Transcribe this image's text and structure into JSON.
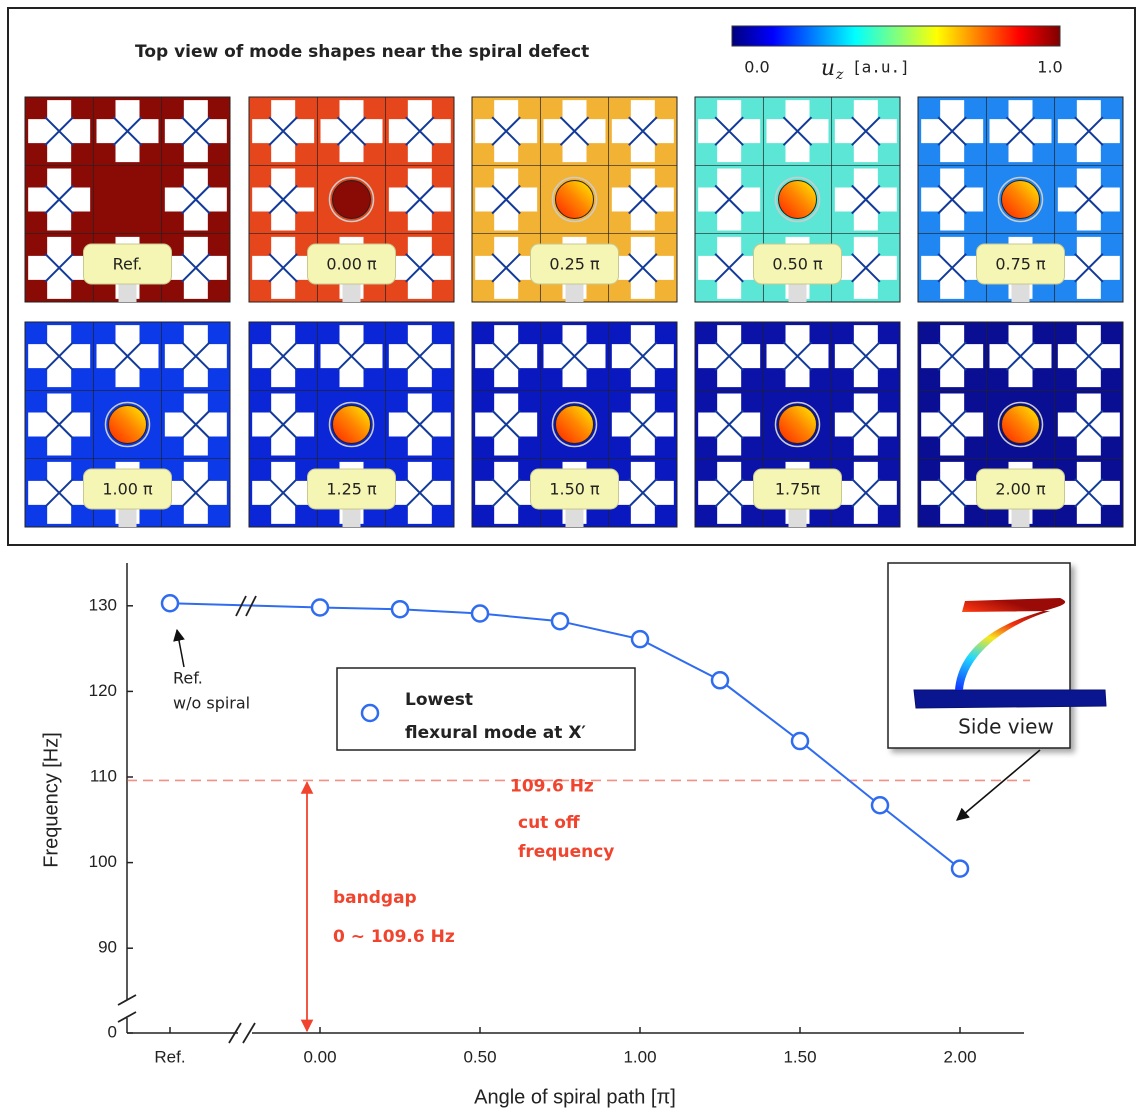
{
  "chart_data": {
    "type": "line",
    "panel_title": "Top view of mode shapes near the spiral defect",
    "colorbar": {
      "clim": [
        0,
        1
      ],
      "ticks": [
        {
          "value": 0,
          "label": "0.0"
        },
        {
          "value": 1,
          "label": "1.0"
        }
      ],
      "label_symbol": "u",
      "label_subscript": "z",
      "label_unit": "[a.u.]"
    },
    "panels": [
      {
        "label": "Ref.",
        "color": "#8a0a06",
        "spiral": false
      },
      {
        "label": "0.00 π",
        "color": "#e6461c",
        "spiral": true
      },
      {
        "label": "0.25 π",
        "color": "#f2b234",
        "spiral": true
      },
      {
        "label": "0.50 π",
        "color": "#5ce6d6",
        "spiral": true
      },
      {
        "label": "0.75 π",
        "color": "#1f86f2",
        "spiral": true
      },
      {
        "label": "1.00 π",
        "color": "#0c3ae8",
        "spiral": true
      },
      {
        "label": "1.25 π",
        "color": "#0a26d6",
        "spiral": true
      },
      {
        "label": "1.50 π",
        "color": "#0a18c0",
        "spiral": true
      },
      {
        "label": "1.75π",
        "color": "#0a12a8",
        "spiral": true
      },
      {
        "label": "2.00 π",
        "color": "#0a0e92",
        "spiral": true
      }
    ],
    "x": [
      0,
      0.25,
      0.5,
      0.75,
      1.0,
      1.25,
      1.5,
      1.75,
      2.0
    ],
    "series": [
      {
        "name": [
          "Lowest",
          "flexural mode at X′"
        ],
        "color": "#2f6cf0",
        "values": [
          129.8,
          129.6,
          129.1,
          128.2,
          126.1,
          121.3,
          114.2,
          106.7,
          99.3
        ]
      }
    ],
    "reference": {
      "label": "Ref.",
      "value": 130.3,
      "note": [
        "Ref.",
        "w/o spiral"
      ]
    },
    "xlim": [
      0,
      2.2
    ],
    "xticks": [
      {
        "value": 0,
        "label": "0.00"
      },
      {
        "value": 0.5,
        "label": "0.50"
      },
      {
        "value": 1.0,
        "label": "1.00"
      },
      {
        "value": 1.5,
        "label": "1.50"
      },
      {
        "value": 2.0,
        "label": "2.00"
      }
    ],
    "ylim": [
      0,
      135
    ],
    "ybreak": [
      0,
      85
    ],
    "yticks": [
      0,
      90,
      100,
      110,
      120,
      130
    ],
    "xlabel": "Angle of spiral path [π]",
    "ylabel": "Frequency [Hz]",
    "cutoff": {
      "value": 109.6,
      "label": "109.6 Hz",
      "note": [
        "cut off",
        "frequency"
      ],
      "color": "#f0442e"
    },
    "bandgap": [
      "bandgap",
      "0 ~ 109.6 Hz"
    ],
    "inset_label": "Side view"
  }
}
